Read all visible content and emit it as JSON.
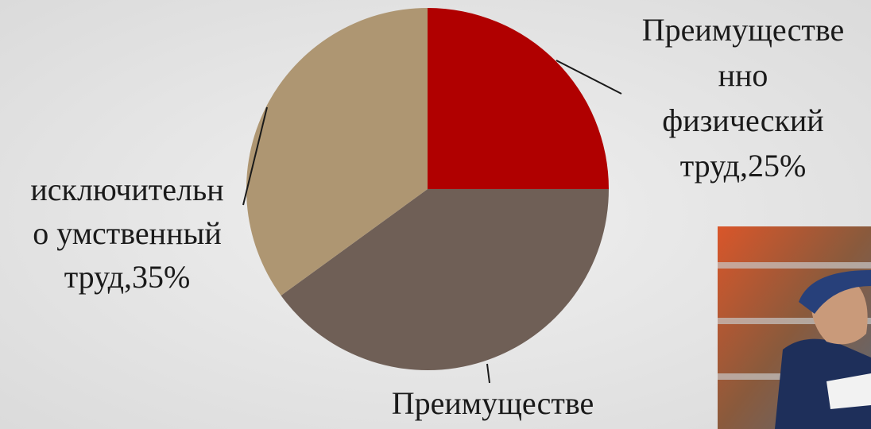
{
  "chart_data": {
    "type": "pie",
    "values": [
      25,
      40,
      35
    ],
    "colors": [
      "#b00000",
      "#6f5f56",
      "#ae9672"
    ],
    "labels": [
      [
        "Преимуществе",
        "нно",
        "физический",
        "труд,25%"
      ],
      [
        "Преимуществе"
      ],
      [
        "исключительн",
        "о умственный",
        "труд,35%"
      ]
    ]
  }
}
